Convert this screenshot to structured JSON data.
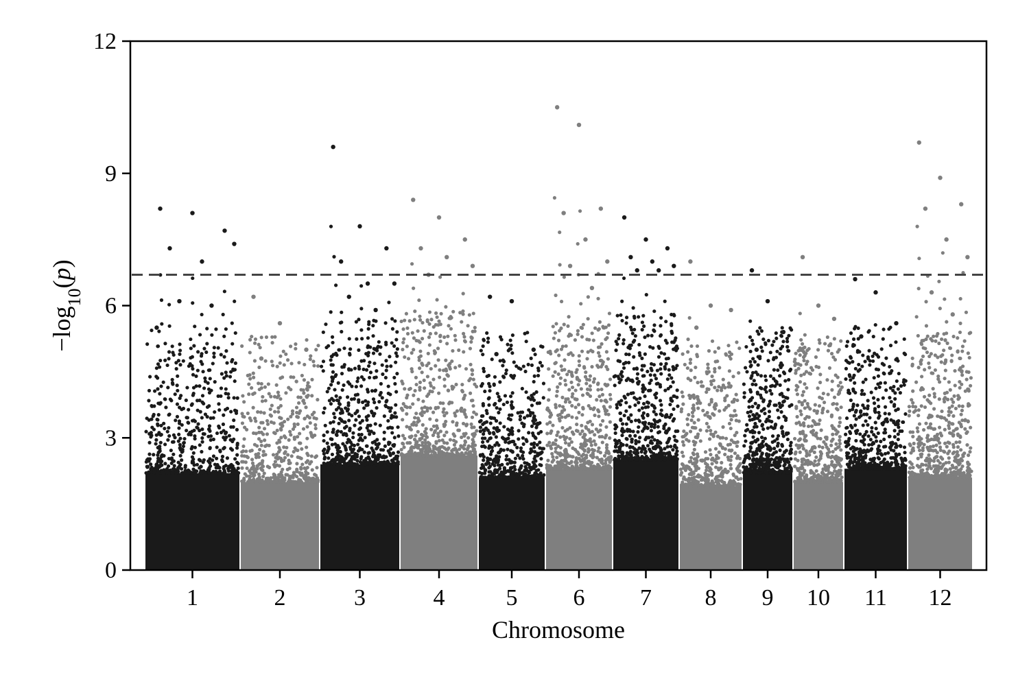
{
  "chart_data": {
    "type": "scatter",
    "subtype": "manhattan",
    "xlabel": "Chromosome",
    "ylabel": "-log10(p)",
    "ylim": [
      0,
      12
    ],
    "yticks": [
      0,
      3,
      6,
      9,
      12
    ],
    "threshold": 6.7,
    "threshold_style": "dashed",
    "grid": false,
    "legend": "none",
    "colors": {
      "odd": "#1a1a1a",
      "even": "#7f7f7f",
      "threshold": "#444444"
    },
    "chromosomes": [
      {
        "label": "1",
        "top_hits": [
          8.2,
          8.1,
          7.7,
          7.3,
          7.0,
          7.4,
          6.1,
          6.0,
          5.5
        ],
        "background_max": 2.2
      },
      {
        "label": "2",
        "top_hits": [
          6.2,
          5.6,
          5.0,
          4.8
        ],
        "background_max": 2.0
      },
      {
        "label": "3",
        "top_hits": [
          9.6,
          7.8,
          7.3,
          7.0,
          6.5,
          6.5,
          6.2,
          5.9
        ],
        "background_max": 2.4
      },
      {
        "label": "4",
        "top_hits": [
          8.4,
          8.0,
          7.5,
          7.3,
          7.1,
          6.9,
          6.7
        ],
        "background_max": 2.6
      },
      {
        "label": "5",
        "top_hits": [
          6.2,
          6.1,
          5.0,
          4.9
        ],
        "background_max": 2.1
      },
      {
        "label": "6",
        "top_hits": [
          10.5,
          10.1,
          8.2,
          8.1,
          7.5,
          7.0,
          6.9,
          6.4
        ],
        "background_max": 2.3
      },
      {
        "label": "7",
        "top_hits": [
          8.0,
          7.5,
          7.3,
          7.1,
          7.0,
          6.9,
          6.8,
          6.8
        ],
        "background_max": 2.5
      },
      {
        "label": "8",
        "top_hits": [
          7.0,
          6.0,
          5.9,
          5.5
        ],
        "background_max": 1.9
      },
      {
        "label": "9",
        "top_hits": [
          6.8,
          6.1,
          5.4,
          5.0
        ],
        "background_max": 2.2
      },
      {
        "label": "10",
        "top_hits": [
          7.1,
          6.0,
          5.7
        ],
        "background_max": 2.0
      },
      {
        "label": "11",
        "top_hits": [
          6.6,
          6.3,
          5.6,
          5.3
        ],
        "background_max": 2.3
      },
      {
        "label": "12",
        "top_hits": [
          9.7,
          8.9,
          8.3,
          8.2,
          7.5,
          7.1,
          6.3,
          5.8
        ],
        "background_max": 2.1
      }
    ]
  }
}
